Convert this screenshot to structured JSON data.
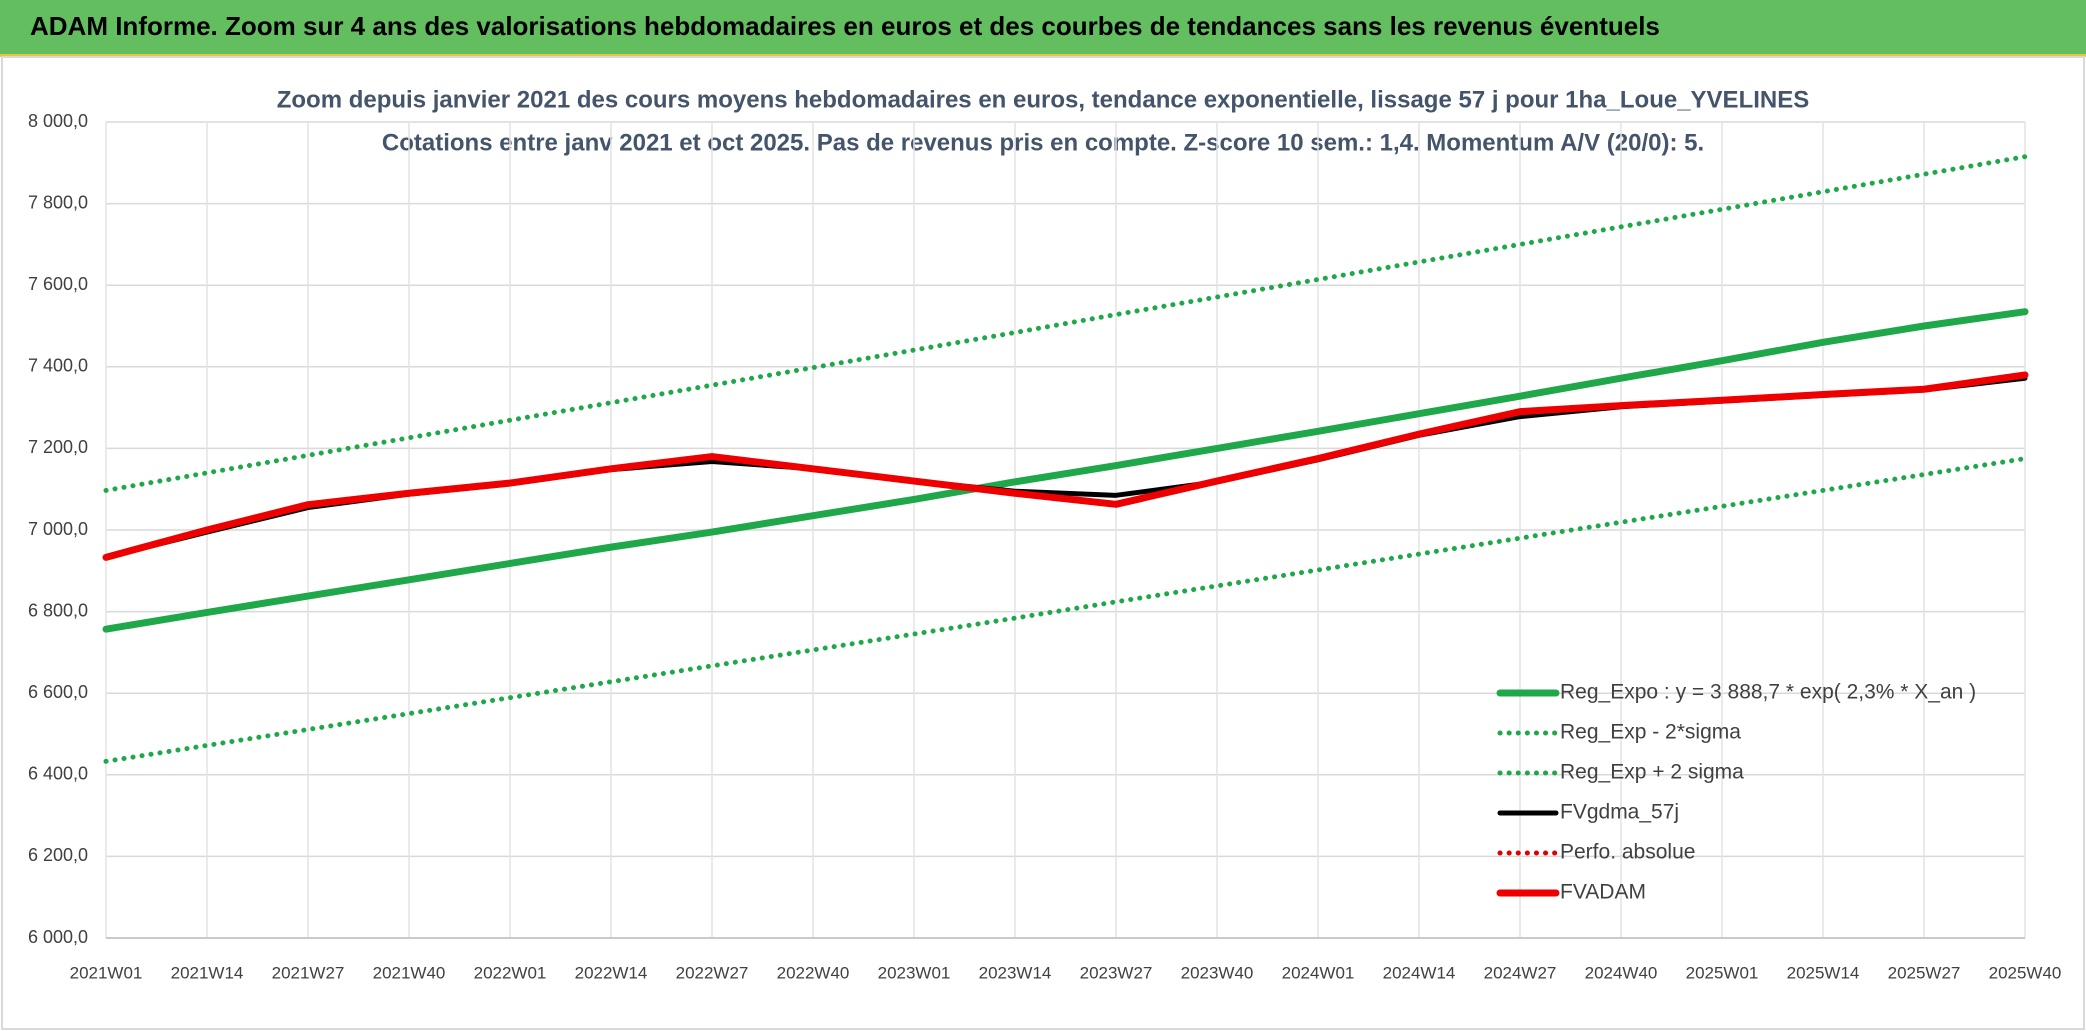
{
  "chart_data": {
    "type": "line",
    "header": "ADAM Informe. Zoom sur 4 ans des valorisations hebdomadaires en euros et des courbes de tendances sans les revenus éventuels",
    "title": "Zoom depuis janvier 2021 des cours moyens hebdomadaires en euros, tendance exponentielle, lissage 57 j pour 1ha_Loue_YVELINES",
    "subtitle": "Cotations entre janv 2021 et oct 2025. Pas de revenus pris en compte. Z-score 10 sem.: 1,4. Momentum A/V (20/0): 5.",
    "categories": [
      "2021W01",
      "2021W14",
      "2021W27",
      "2021W40",
      "2022W01",
      "2022W14",
      "2022W27",
      "2022W40",
      "2023W01",
      "2023W14",
      "2023W27",
      "2023W40",
      "2024W01",
      "2024W14",
      "2024W27",
      "2024W40",
      "2025W01",
      "2025W14",
      "2025W27",
      "2025W40"
    ],
    "series": [
      {
        "name": "Reg_Expo : y = 3 888,7 * exp( 2,3% *  X_an )",
        "color": "#1fa84a",
        "line_style": "solid",
        "values": [
          6757,
          6798,
          6838,
          6878,
          6918,
          6958,
          6995,
          7035,
          7075,
          7118,
          7158,
          7200,
          7242,
          7285,
          7328,
          7372,
          7415,
          7460,
          7500,
          7535
        ]
      },
      {
        "name": "Reg_Exp - 2*sigma",
        "color": "#1fa84a",
        "line_style": "dotted",
        "values": [
          6433,
          6472,
          6511,
          6550,
          6589,
          6628,
          6667,
          6706,
          6745,
          6784,
          6824,
          6863,
          6902,
          6941,
          6980,
          7019,
          7058,
          7097,
          7136,
          7175
        ]
      },
      {
        "name": "Reg_Exp + 2 sigma",
        "color": "#1fa84a",
        "line_style": "dotted",
        "values": [
          7097,
          7140,
          7183,
          7226,
          7269,
          7312,
          7355,
          7398,
          7441,
          7484,
          7528,
          7571,
          7614,
          7657,
          7700,
          7743,
          7786,
          7829,
          7872,
          7915
        ]
      },
      {
        "name": "FVgdma_57j",
        "color": "#000000",
        "line_style": "solid",
        "values": [
          6933,
          6995,
          7055,
          7088,
          7113,
          7148,
          7168,
          7150,
          7120,
          7095,
          7085,
          7118,
          7172,
          7232,
          7278,
          7302,
          7316,
          7330,
          7343,
          7372
        ]
      },
      {
        "name": "Perfo. absolue",
        "color": "#e00000",
        "line_style": "dotted",
        "values": [
          6933,
          7000,
          7062,
          7090,
          7115,
          7150,
          7180,
          7150,
          7120,
          7090,
          7063,
          7120,
          7175,
          7235,
          7290,
          7305,
          7318,
          7332,
          7345,
          7380
        ]
      },
      {
        "name": "FVADAM",
        "color": "#ee0000",
        "line_style": "solid",
        "values": [
          6933,
          7000,
          7062,
          7090,
          7115,
          7150,
          7180,
          7150,
          7120,
          7090,
          7063,
          7120,
          7175,
          7235,
          7290,
          7305,
          7318,
          7332,
          7345,
          7380
        ]
      }
    ],
    "ylim": [
      6000,
      8000
    ],
    "yticks": [
      {
        "value": 6000,
        "label": "6 000,0"
      },
      {
        "value": 6200,
        "label": "6 200,0"
      },
      {
        "value": 6400,
        "label": "6 400,0"
      },
      {
        "value": 6600,
        "label": "6 600,0"
      },
      {
        "value": 6800,
        "label": "6 800,0"
      },
      {
        "value": 7000,
        "label": "7 000,0"
      },
      {
        "value": 7200,
        "label": "7 200,0"
      },
      {
        "value": 7400,
        "label": "7 400,0"
      },
      {
        "value": 7600,
        "label": "7 600,0"
      },
      {
        "value": 7800,
        "label": "7 800,0"
      },
      {
        "value": 8000,
        "label": "8 000,0"
      }
    ],
    "grid": true,
    "legend": "bottom-right"
  }
}
